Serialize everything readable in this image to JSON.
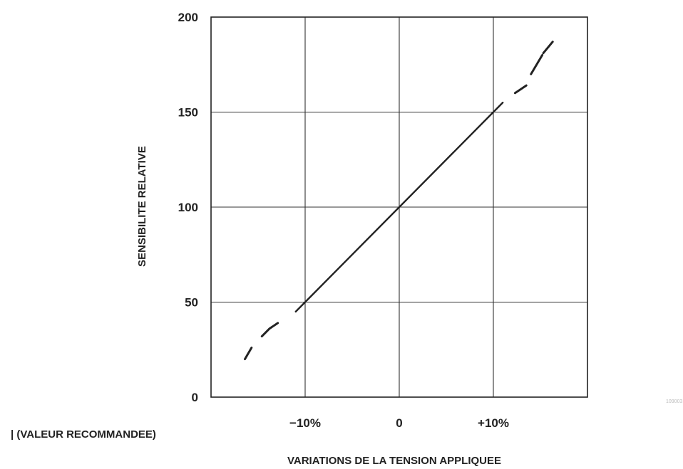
{
  "chart_data": {
    "type": "line",
    "xlabel": "VARIATIONS DE LA TENSION APPLIQUEE",
    "ylabel": "SENSIBILITE RELATIVE",
    "x_ticks": [
      {
        "value": -10,
        "label": "−10%"
      },
      {
        "value": 0,
        "label": "0"
      },
      {
        "value": 10,
        "label": "+10%"
      }
    ],
    "y_ticks": [
      0,
      50,
      100,
      150,
      200
    ],
    "xlim": [
      -20,
      20
    ],
    "ylim": [
      0,
      200
    ],
    "grid": true,
    "footnote": "| (VALEUR RECOMMANDEE)",
    "corner_code": "1090031",
    "solid_segment": {
      "x": [
        -11,
        -10,
        0,
        10,
        11
      ],
      "y": [
        45,
        50,
        100,
        150,
        155
      ]
    },
    "dashed_segments": [
      {
        "x": [
          -16.4,
          -15.7
        ],
        "y": [
          20,
          26
        ]
      },
      {
        "x": [
          -14.6,
          -13.8,
          -12.9
        ],
        "y": [
          32,
          36,
          39
        ]
      },
      {
        "x": [
          12.3,
          13.5
        ],
        "y": [
          160,
          164
        ]
      },
      {
        "x": [
          14.0,
          15.2
        ],
        "y": [
          170,
          180
        ]
      },
      {
        "x": [
          15.3,
          16.3
        ],
        "y": [
          181,
          187
        ]
      }
    ],
    "line_color": "#222222"
  }
}
